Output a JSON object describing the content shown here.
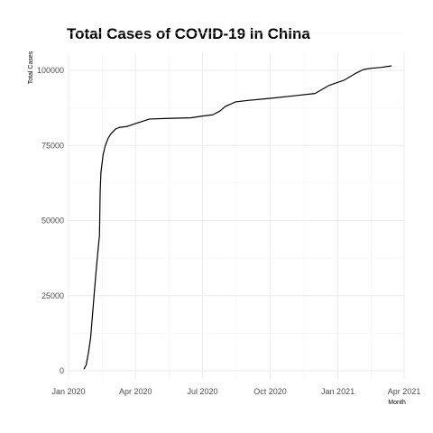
{
  "chart_data": {
    "type": "line",
    "title": "Total Cases of COVID-19 in China",
    "xlabel": "Month",
    "ylabel": "Total Cases",
    "grid": true,
    "legend": "none",
    "xlim": [
      "2020-01-01",
      "2021-04-01"
    ],
    "ylim": [
      0,
      100000
    ],
    "x_ticks": [
      {
        "date": "2020-01-01",
        "label": "Jan 2020"
      },
      {
        "date": "2020-04-01",
        "label": "Apr 2020"
      },
      {
        "date": "2020-07-01",
        "label": "Jul 2020"
      },
      {
        "date": "2020-10-01",
        "label": "Oct 2020"
      },
      {
        "date": "2021-01-01",
        "label": "Jan 2021"
      },
      {
        "date": "2021-04-01",
        "label": "Apr 2021"
      }
    ],
    "y_ticks": [
      {
        "value": 0,
        "label": "0"
      },
      {
        "value": 25000,
        "label": "25000"
      },
      {
        "value": 50000,
        "label": "50000"
      },
      {
        "value": 75000,
        "label": "75000"
      },
      {
        "value": 100000,
        "label": "100000"
      }
    ],
    "series": [
      {
        "points": [
          {
            "x": "2020-01-22",
            "y": 548
          },
          {
            "x": "2020-01-25",
            "y": 2000
          },
          {
            "x": "2020-01-28",
            "y": 6000
          },
          {
            "x": "2020-01-31",
            "y": 11000
          },
          {
            "x": "2020-02-03",
            "y": 20000
          },
          {
            "x": "2020-02-07",
            "y": 32000
          },
          {
            "x": "2020-02-10",
            "y": 40000
          },
          {
            "x": "2020-02-12",
            "y": 45000
          },
          {
            "x": "2020-02-13",
            "y": 60000
          },
          {
            "x": "2020-02-14",
            "y": 66000
          },
          {
            "x": "2020-02-17",
            "y": 72000
          },
          {
            "x": "2020-02-20",
            "y": 75000
          },
          {
            "x": "2020-02-24",
            "y": 77500
          },
          {
            "x": "2020-02-28",
            "y": 79000
          },
          {
            "x": "2020-03-05",
            "y": 80500
          },
          {
            "x": "2020-03-10",
            "y": 81000
          },
          {
            "x": "2020-03-20",
            "y": 81300
          },
          {
            "x": "2020-04-01",
            "y": 82300
          },
          {
            "x": "2020-04-15",
            "y": 83400
          },
          {
            "x": "2020-04-20",
            "y": 83800
          },
          {
            "x": "2020-05-15",
            "y": 84000
          },
          {
            "x": "2020-06-15",
            "y": 84200
          },
          {
            "x": "2020-07-01",
            "y": 84800
          },
          {
            "x": "2020-07-15",
            "y": 85200
          },
          {
            "x": "2020-07-25",
            "y": 86500
          },
          {
            "x": "2020-08-01",
            "y": 88000
          },
          {
            "x": "2020-08-15",
            "y": 89500
          },
          {
            "x": "2020-09-01",
            "y": 90000
          },
          {
            "x": "2020-10-01",
            "y": 90700
          },
          {
            "x": "2020-11-01",
            "y": 91500
          },
          {
            "x": "2020-12-01",
            "y": 92300
          },
          {
            "x": "2020-12-20",
            "y": 95000
          },
          {
            "x": "2021-01-10",
            "y": 96800
          },
          {
            "x": "2021-01-25",
            "y": 99000
          },
          {
            "x": "2021-02-05",
            "y": 100300
          },
          {
            "x": "2021-02-15",
            "y": 100700
          },
          {
            "x": "2021-03-01",
            "y": 101000
          },
          {
            "x": "2021-03-15",
            "y": 101500
          }
        ]
      }
    ]
  }
}
